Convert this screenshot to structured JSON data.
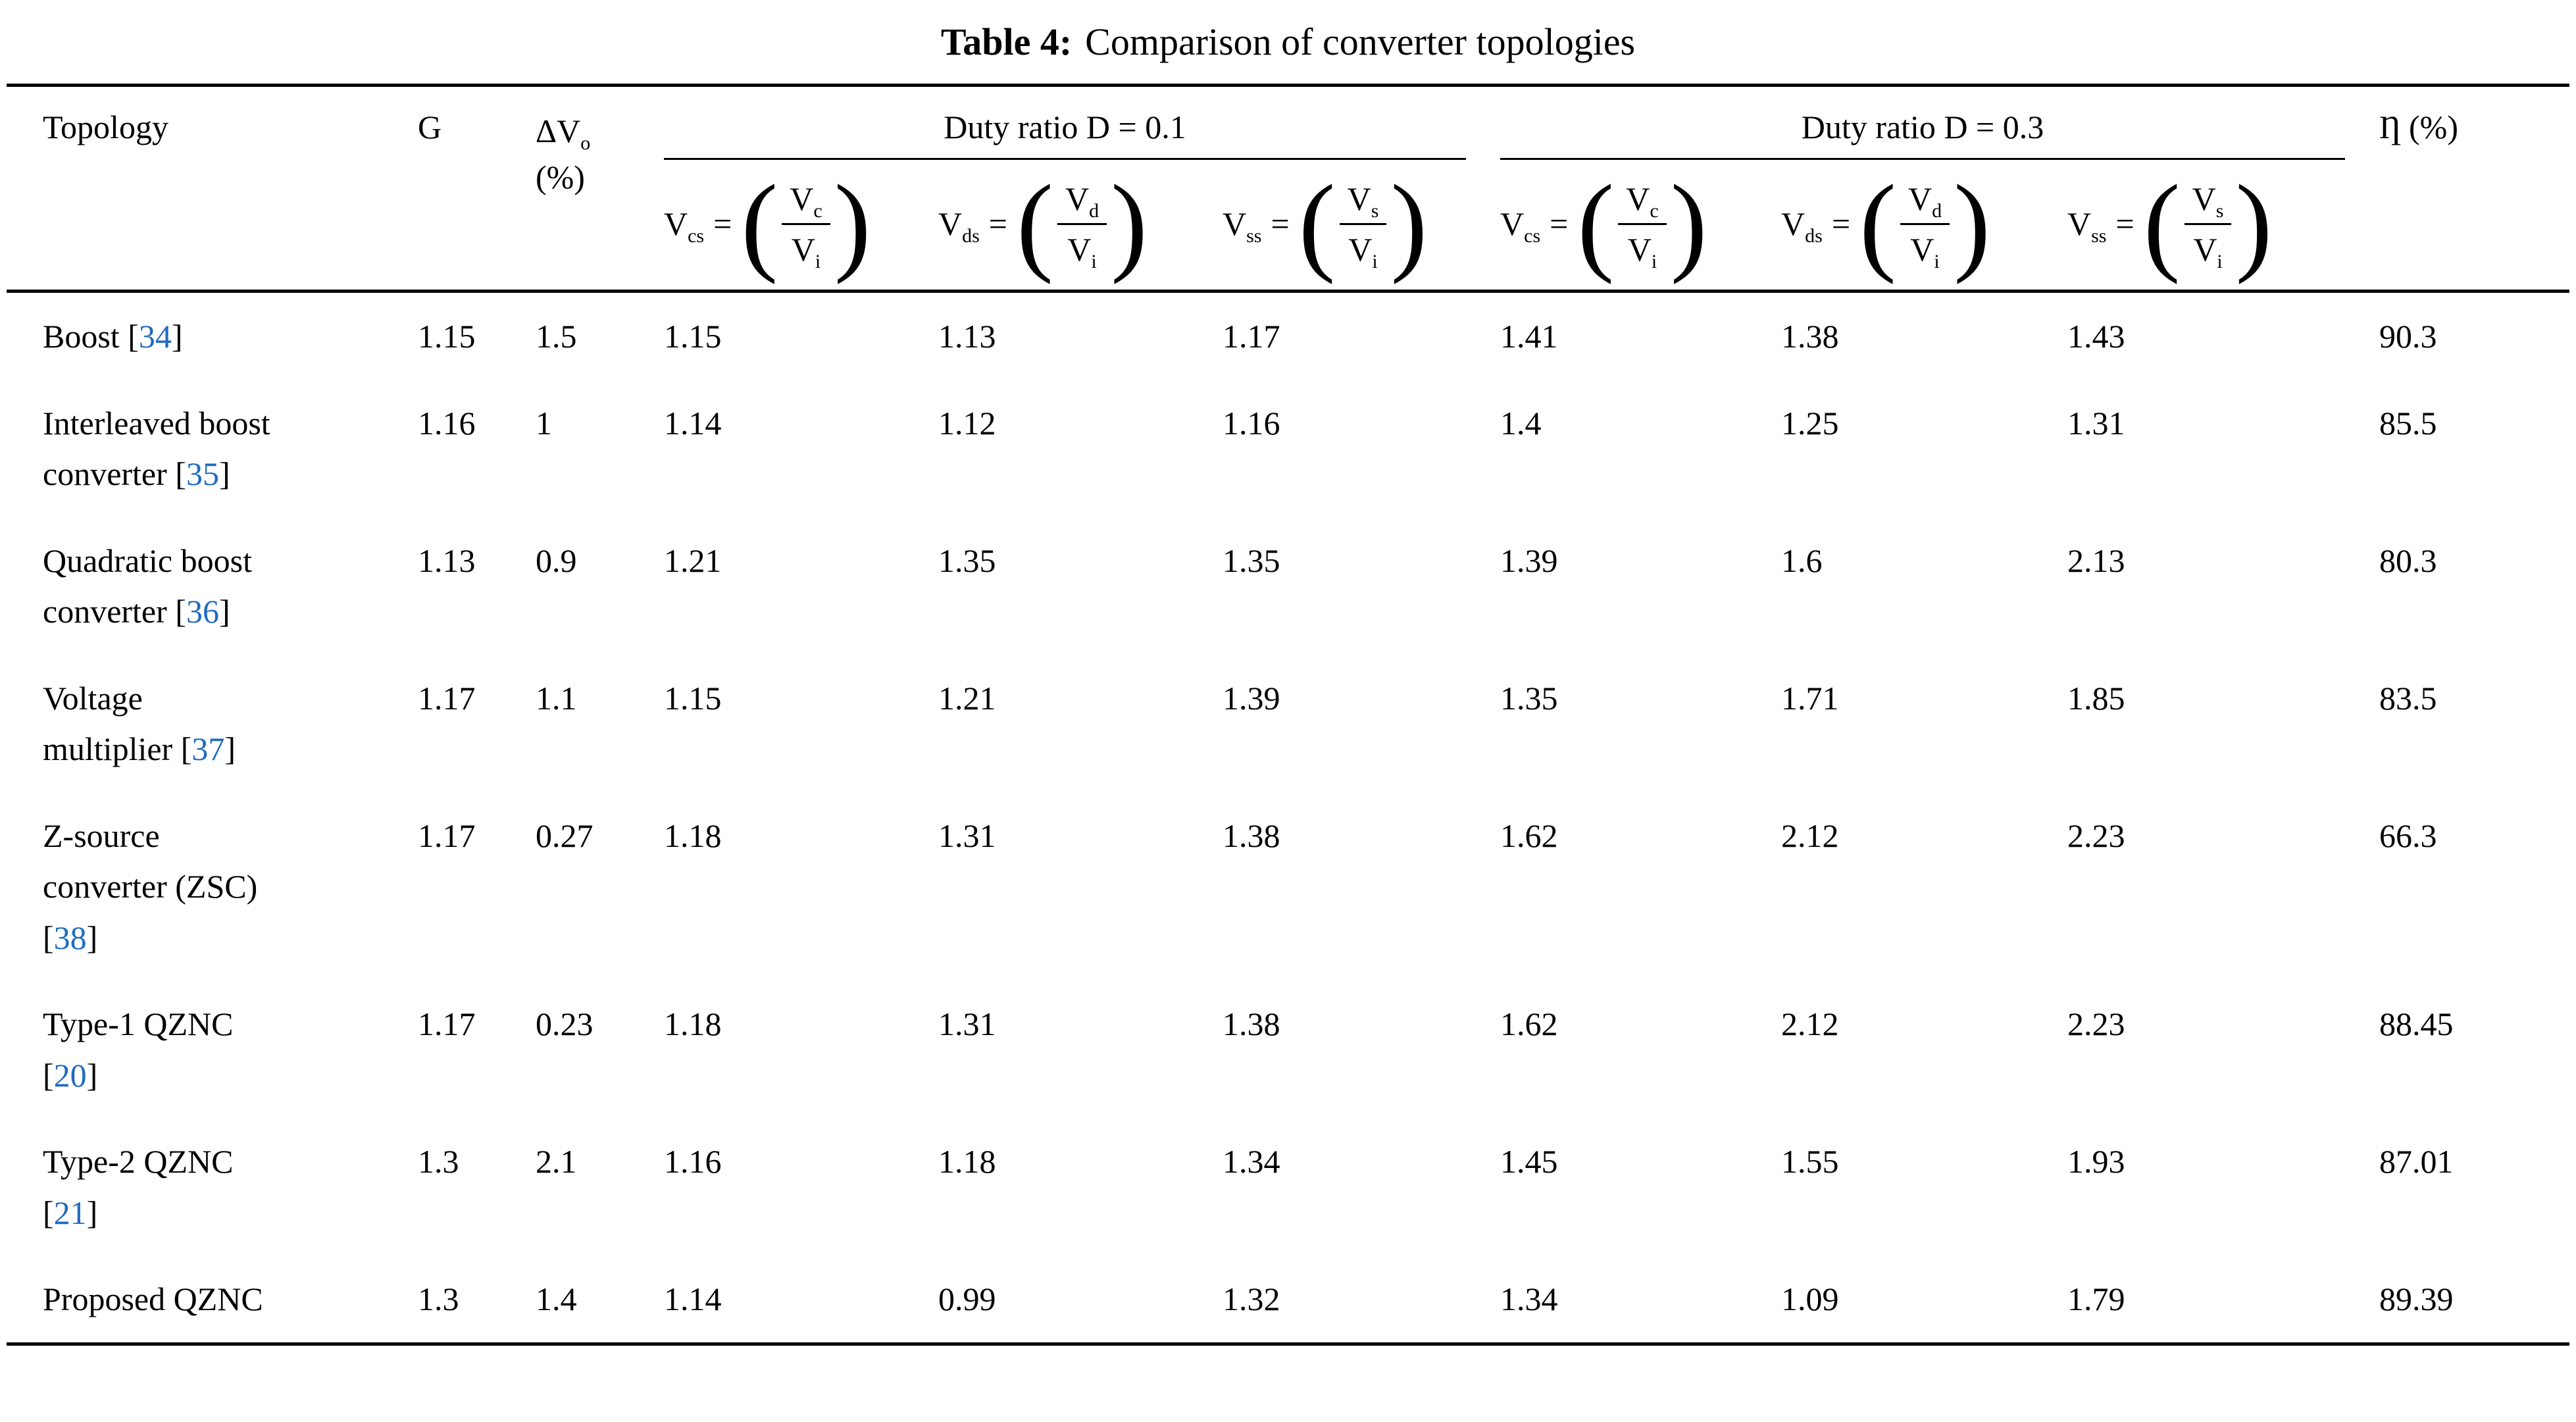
{
  "title": {
    "label": "Table 4:",
    "text": "Comparison of converter topologies"
  },
  "colors": {
    "background": "#ffffff",
    "text": "#000000",
    "rule": "#000000",
    "citation": "#1f6bbf"
  },
  "header": {
    "topology": "Topology",
    "gain": "G",
    "dv_sym": "ΔV",
    "dv_sub": "o",
    "dv_unit": "(%)",
    "groups": [
      "Duty ratio D = 0.1",
      "Duty ratio D = 0.3"
    ],
    "eta_sym": "Ƞ",
    "eta_unit": "(%)",
    "paren_open": "(",
    "paren_close": ")",
    "formulas": [
      {
        "sym": "V",
        "lhs_sub": "cs",
        "eq": "=",
        "num_sub": "c",
        "den_sub": "i"
      },
      {
        "sym": "V",
        "lhs_sub": "ds",
        "eq": "=",
        "num_sub": "d",
        "den_sub": "i"
      },
      {
        "sym": "V",
        "lhs_sub": "ss",
        "eq": "=",
        "num_sub": "s",
        "den_sub": "i"
      },
      {
        "sym": "V",
        "lhs_sub": "cs",
        "eq": "=",
        "num_sub": "c",
        "den_sub": "i"
      },
      {
        "sym": "V",
        "lhs_sub": "ds",
        "eq": "=",
        "num_sub": "d",
        "den_sub": "i"
      },
      {
        "sym": "V",
        "lhs_sub": "ss",
        "eq": "=",
        "num_sub": "s",
        "den_sub": "i"
      }
    ]
  },
  "rows": [
    {
      "topology": "Boost",
      "cite": "34",
      "g": "1.15",
      "dv": "1.5",
      "values": [
        "1.15",
        "1.13",
        "1.17",
        "1.41",
        "1.38",
        "1.43"
      ],
      "eta": "90.3"
    },
    {
      "topology": "Interleaved boost converter",
      "cite": "35",
      "g": "1.16",
      "dv": "1",
      "values": [
        "1.14",
        "1.12",
        "1.16",
        "1.4",
        "1.25",
        "1.31"
      ],
      "eta": "85.5"
    },
    {
      "topology": "Quadratic boost converter",
      "cite": "36",
      "g": "1.13",
      "dv": "0.9",
      "values": [
        "1.21",
        "1.35",
        "1.35",
        "1.39",
        "1.6",
        "2.13"
      ],
      "eta": "80.3"
    },
    {
      "topology": "Voltage multiplier",
      "cite": "37",
      "g": "1.17",
      "dv": "1.1",
      "values": [
        "1.15",
        "1.21",
        "1.39",
        "1.35",
        "1.71",
        "1.85"
      ],
      "eta": "83.5"
    },
    {
      "topology": "Z-source converter (ZSC)",
      "cite": "38",
      "g": "1.17",
      "dv": "0.27",
      "values": [
        "1.18",
        "1.31",
        "1.38",
        "1.62",
        "2.12",
        "2.23"
      ],
      "eta": "66.3"
    },
    {
      "topology": "Type-1 QZNC",
      "cite": "20",
      "g": "1.17",
      "dv": "0.23",
      "values": [
        "1.18",
        "1.31",
        "1.38",
        "1.62",
        "2.12",
        "2.23"
      ],
      "eta": "88.45"
    },
    {
      "topology": "Type-2 QZNC",
      "cite": "21",
      "g": "1.3",
      "dv": "2.1",
      "values": [
        "1.16",
        "1.18",
        "1.34",
        "1.45",
        "1.55",
        "1.93"
      ],
      "eta": "87.01"
    },
    {
      "topology": "Proposed QZNC",
      "cite": null,
      "g": "1.3",
      "dv": "1.4",
      "values": [
        "1.14",
        "0.99",
        "1.32",
        "1.34",
        "1.09",
        "1.79"
      ],
      "eta": "89.39"
    }
  ]
}
